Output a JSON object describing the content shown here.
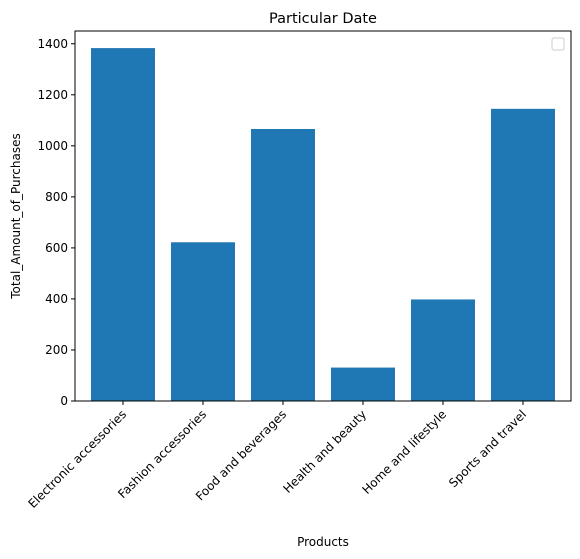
{
  "chart_data": {
    "type": "bar",
    "title": "Particular Date",
    "xlabel": "Products",
    "ylabel": "Total_Amount_of_Purchases",
    "categories": [
      "Electronic accessories",
      "Fashion accessories",
      "Food and beverages",
      "Health and beauty",
      "Home and lifestyle",
      "Sports and travel"
    ],
    "values": [
      1383,
      622,
      1066,
      131,
      398,
      1145
    ],
    "ylim": [
      0,
      1450
    ],
    "yticks": [
      0,
      200,
      400,
      600,
      800,
      1000,
      1200,
      1400
    ],
    "bar_color": "#1f77b4",
    "grid": false,
    "legend": {
      "placement": "top-right",
      "entries": []
    }
  }
}
